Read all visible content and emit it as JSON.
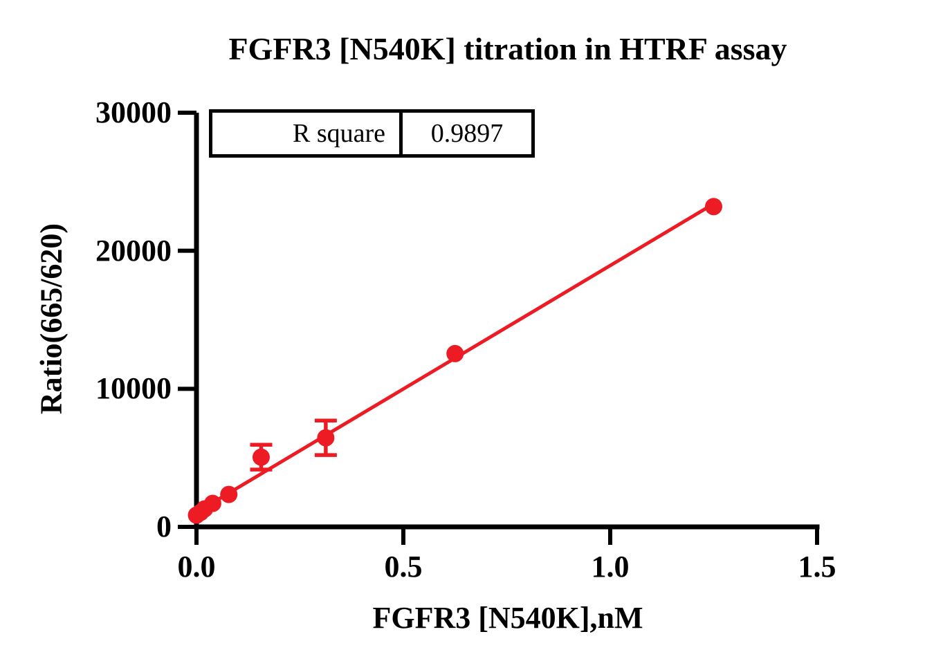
{
  "stats_table": {
    "label": "R square",
    "value": "0.9897"
  },
  "chart_data": {
    "type": "scatter",
    "title": "FGFR3 [N540K] titration in HTRF assay",
    "xlabel": "FGFR3 [N540K],nM",
    "ylabel": "Ratio(665/620)",
    "xlim": [
      0,
      1.5
    ],
    "ylim": [
      0,
      30000
    ],
    "grid": false,
    "legend": "none",
    "axis_color": "#000000",
    "x_ticks": [
      {
        "value": 0.0,
        "label": "0.0"
      },
      {
        "value": 0.5,
        "label": "0.5"
      },
      {
        "value": 1.0,
        "label": "1.0"
      },
      {
        "value": 1.5,
        "label": "1.5"
      }
    ],
    "y_ticks": [
      {
        "value": 0,
        "label": "0"
      },
      {
        "value": 10000,
        "label": "10000"
      },
      {
        "value": 20000,
        "label": "20000"
      },
      {
        "value": 30000,
        "label": "30000"
      }
    ],
    "series": [
      {
        "name": "FGFR3 [N540K]",
        "marker": "circle",
        "marker_color": "#ED1C24",
        "points": [
          {
            "x": 0.0,
            "y": 850,
            "err": 0
          },
          {
            "x": 0.0098,
            "y": 1050,
            "err": 0
          },
          {
            "x": 0.0195,
            "y": 1300,
            "err": 0
          },
          {
            "x": 0.0391,
            "y": 1700,
            "err": 0
          },
          {
            "x": 0.0781,
            "y": 2350,
            "err": 0
          },
          {
            "x": 0.1563,
            "y": 5050,
            "err": 900
          },
          {
            "x": 0.3125,
            "y": 6450,
            "err": 1250
          },
          {
            "x": 0.625,
            "y": 12550,
            "err": 0
          },
          {
            "x": 1.25,
            "y": 23200,
            "err": 0
          }
        ]
      }
    ],
    "fit_line": {
      "color": "#ED1C24",
      "x1": 0,
      "y1": 1050,
      "x2": 1.25,
      "y2": 23400,
      "r_square": 0.9897
    }
  }
}
